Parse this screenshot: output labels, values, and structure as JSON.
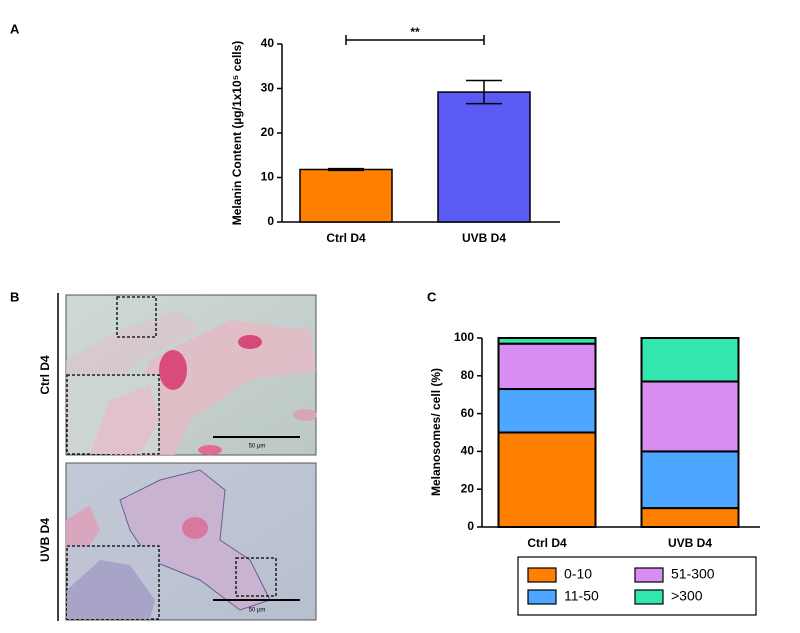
{
  "panel_labels": [
    "A",
    "B",
    "C"
  ],
  "micrographs": {
    "row_labels": [
      "Ctrl  D4",
      "UVB D4"
    ],
    "scale_bar": "50 µm"
  },
  "chart_data": [
    {
      "type": "bar",
      "ylabel": "Melanin Content (µg/1x10⁵ cells)",
      "categories": [
        "Ctrl D4",
        "UVB D4"
      ],
      "values": [
        11.8,
        29.2
      ],
      "errors": [
        0.2,
        2.6
      ],
      "colors": [
        "#ff8000",
        "#5a5af5"
      ],
      "annotation": "**",
      "ylim": [
        0,
        40
      ],
      "yticks": [
        0,
        10,
        20,
        30,
        40
      ]
    },
    {
      "type": "stacked_bar",
      "ylabel": "Melanosomes/ cell (%)",
      "categories": [
        "Ctrl D4",
        "UVB D4"
      ],
      "series": [
        {
          "name": "0-10",
          "color": "#ff8000",
          "values": [
            50,
            10
          ]
        },
        {
          "name": "11-50",
          "color": "#4da6ff",
          "values": [
            23,
            30
          ]
        },
        {
          "name": "51-300",
          "color": "#d98cf2",
          "values": [
            24,
            37
          ]
        },
        {
          "name": ">300",
          "color": "#33e6b0",
          "values": [
            3,
            23
          ]
        }
      ],
      "legend": "below",
      "ylim": [
        0,
        100
      ],
      "yticks": [
        0,
        20,
        40,
        60,
        80,
        100
      ]
    }
  ]
}
